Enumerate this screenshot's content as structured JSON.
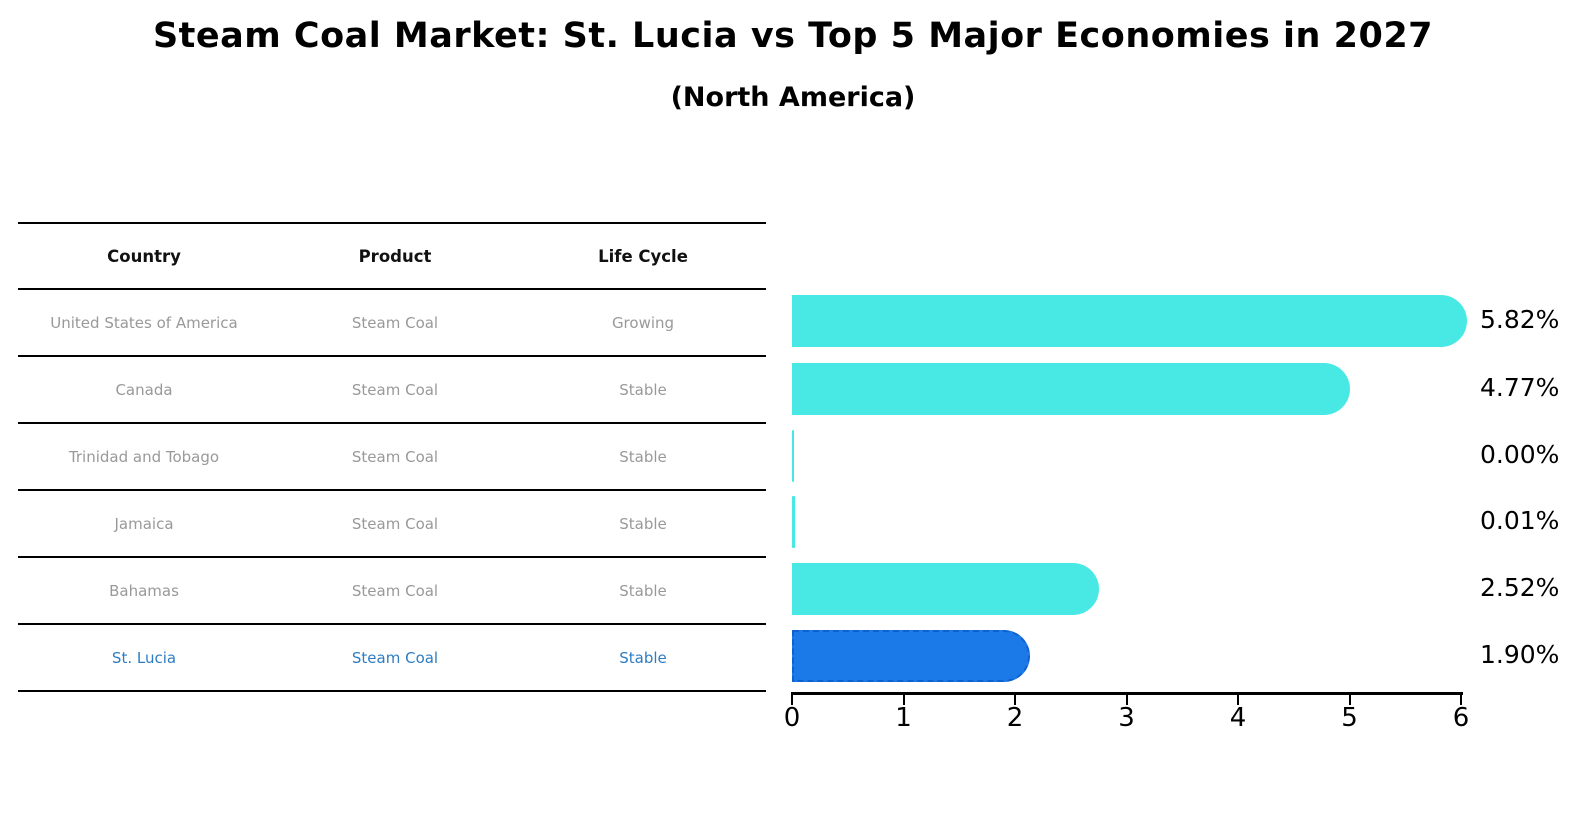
{
  "header": {
    "title": "Steam Coal Market: St. Lucia vs Top 5 Major Economies in 2027",
    "subtitle": "(North America)"
  },
  "table": {
    "columns": [
      "Country",
      "Product",
      "Life Cycle"
    ],
    "rows": [
      {
        "country": "United States of America",
        "product": "Steam Coal",
        "life_cycle": "Growing",
        "highlighted": false
      },
      {
        "country": "Canada",
        "product": "Steam Coal",
        "life_cycle": "Stable",
        "highlighted": false
      },
      {
        "country": "Trinidad and Tobago",
        "product": "Steam Coal",
        "life_cycle": "Stable",
        "highlighted": false
      },
      {
        "country": "Jamaica",
        "product": "Steam Coal",
        "life_cycle": "Stable",
        "highlighted": false
      },
      {
        "country": "Bahamas",
        "product": "Steam Coal",
        "life_cycle": "Stable",
        "highlighted": false
      },
      {
        "country": "St. Lucia",
        "product": "Steam Coal",
        "life_cycle": "Stable",
        "highlighted": true
      }
    ]
  },
  "chart_data": {
    "type": "bar",
    "orientation": "horizontal",
    "title": "Steam Coal Market: St. Lucia vs Top 5 Major Economies in 2027",
    "subtitle": "(North America)",
    "categories": [
      "United States of America",
      "Canada",
      "Trinidad and Tobago",
      "Jamaica",
      "Bahamas",
      "St. Lucia"
    ],
    "values": [
      5.82,
      4.77,
      0.0,
      0.01,
      2.52,
      1.9
    ],
    "value_labels": [
      "5.82%",
      "4.77%",
      "0.00%",
      "0.01%",
      "2.52%",
      "1.90%"
    ],
    "highlighted_category": "St. Lucia",
    "xlim": [
      0,
      6
    ],
    "x_ticks": [
      "0",
      "1",
      "2",
      "3",
      "4",
      "5",
      "6"
    ],
    "grid": false,
    "legend": false,
    "colors": {
      "default_bar": "#48E9E4",
      "highlight_bar": "#1B7AE8",
      "highlight_border": "#0D62D0",
      "highlight_text": "#2E7CC3",
      "row_text": "#999999",
      "axis_text": "#000000"
    }
  }
}
